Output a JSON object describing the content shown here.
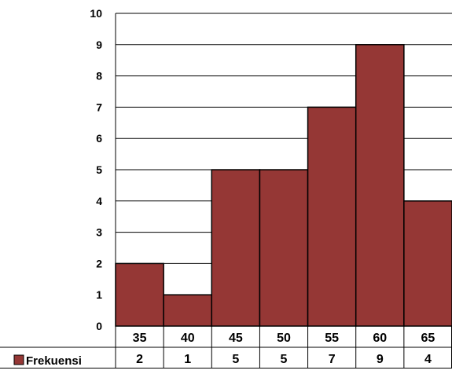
{
  "chart_data": {
    "type": "bar",
    "categories": [
      "35",
      "40",
      "45",
      "50",
      "55",
      "60",
      "65"
    ],
    "series": [
      {
        "name": "Frekuensi",
        "values": [
          2,
          1,
          5,
          5,
          7,
          9,
          4
        ],
        "color": "#953735"
      }
    ],
    "ylim": [
      0,
      10
    ],
    "y_ticks": [
      0,
      1,
      2,
      3,
      4,
      5,
      6,
      7,
      8,
      9,
      10
    ],
    "grid": true,
    "legend": "data-table",
    "data_table": true
  }
}
